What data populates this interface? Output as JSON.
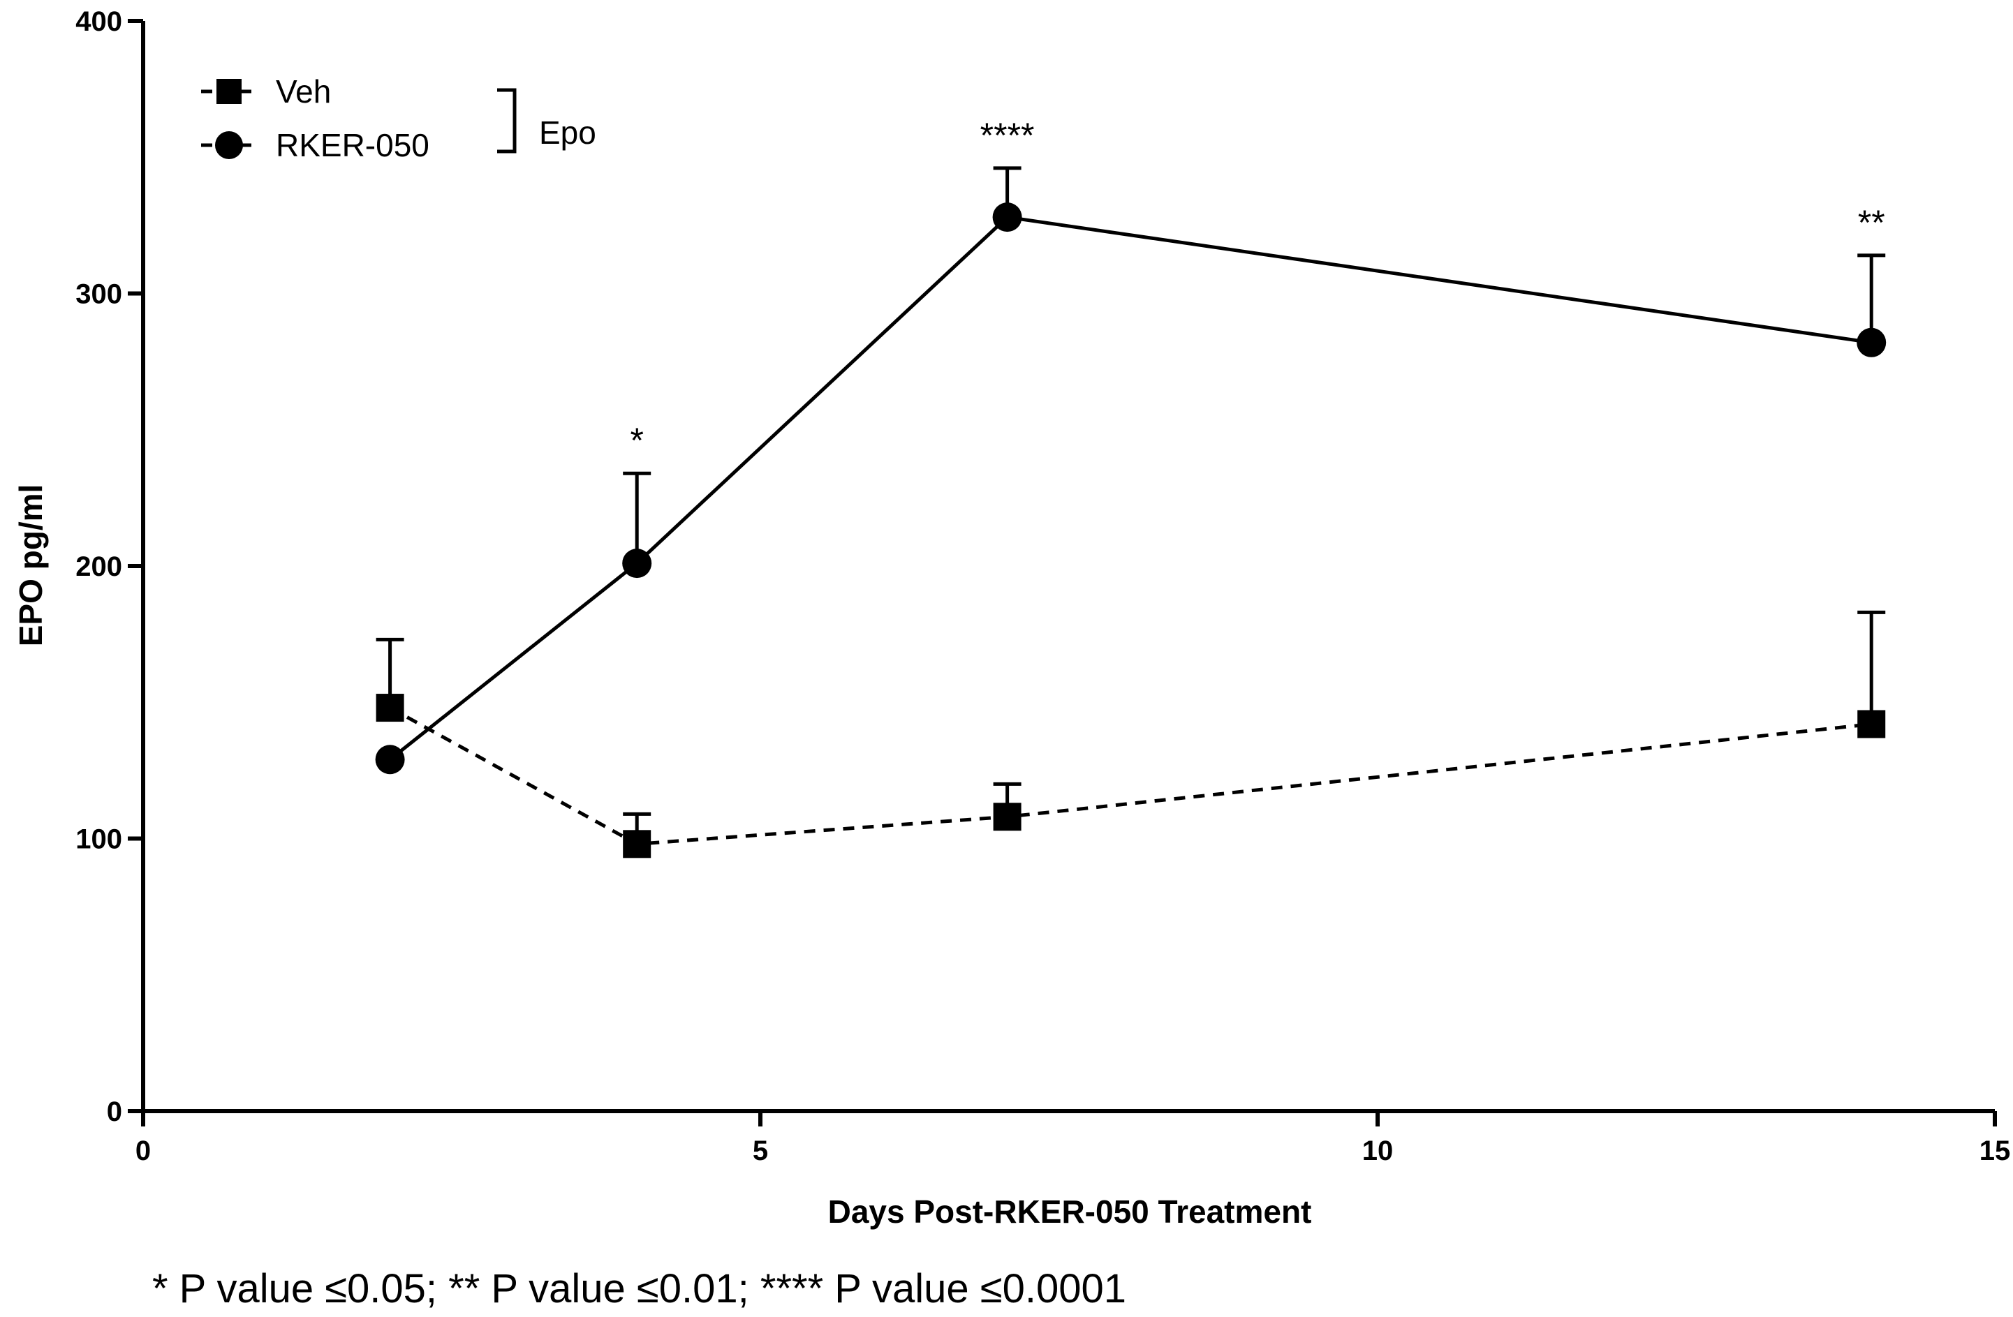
{
  "chart_data": {
    "type": "line",
    "title": "",
    "xlabel": "Days Post-RKER-050 Treatment",
    "ylabel": "EPO pg/ml",
    "xlim": [
      0,
      15
    ],
    "ylim": [
      0,
      400
    ],
    "x_ticks": [
      0,
      5,
      10,
      15
    ],
    "y_ticks": [
      0,
      100,
      200,
      300,
      400
    ],
    "grid": false,
    "legend_position": "top-left",
    "legend_group_label": "Epo",
    "series": [
      {
        "name": "Veh",
        "marker": "square",
        "line_style": "dashed",
        "x": [
          2,
          4,
          7,
          14
        ],
        "values": [
          148,
          98,
          108,
          142
        ],
        "error_upper": [
          25,
          11,
          12,
          41
        ]
      },
      {
        "name": "RKER-050",
        "marker": "circle",
        "line_style": "solid",
        "x": [
          2,
          4,
          7,
          14
        ],
        "values": [
          129,
          201,
          328,
          282
        ],
        "error_upper": [
          0,
          33,
          18,
          32
        ],
        "significance": [
          "",
          "*",
          "****",
          "**"
        ]
      }
    ],
    "footnote": "* P value ≤0.05; ** P value ≤0.01; **** P value ≤0.0001"
  }
}
